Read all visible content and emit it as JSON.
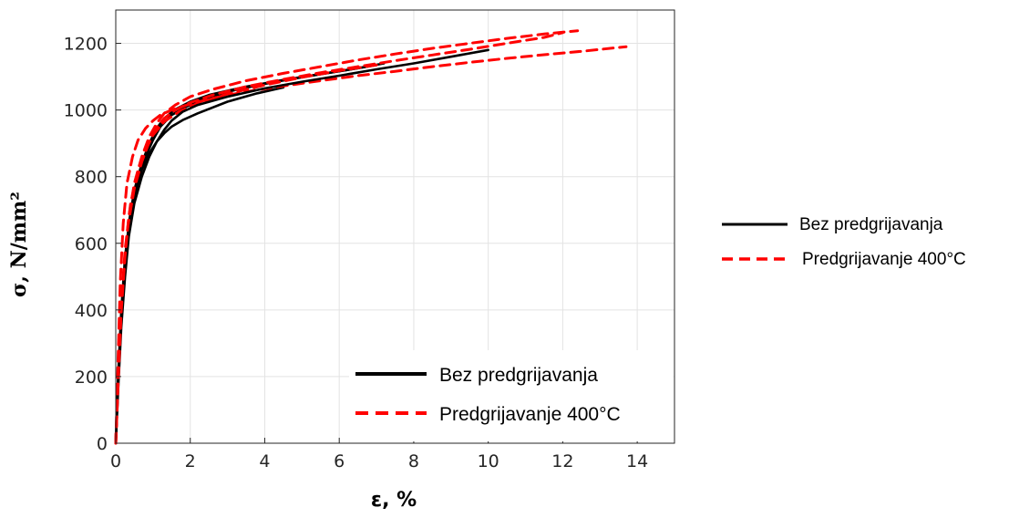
{
  "chart_data": {
    "type": "line",
    "xlabel": "ε, %",
    "ylabel": "σ, N/mm²",
    "xlim": [
      0,
      15
    ],
    "ylim": [
      0,
      1300
    ],
    "x_ticks": [
      0,
      2,
      4,
      6,
      8,
      10,
      12,
      14
    ],
    "y_ticks": [
      0,
      200,
      400,
      600,
      800,
      1000,
      1200
    ],
    "grid": true,
    "legend_position": "bottom-right",
    "series": [
      {
        "name": "Bez predgrijavanja",
        "color": "#000000",
        "style": "solid",
        "group": 0,
        "x": [
          0,
          0.08,
          0.15,
          0.25,
          0.35,
          0.5,
          0.7,
          0.9,
          1.1,
          1.3,
          1.5,
          1.8,
          2.2,
          3,
          4,
          5,
          6,
          7,
          8,
          9,
          10
        ],
        "y": [
          0,
          200,
          350,
          500,
          620,
          720,
          800,
          860,
          905,
          940,
          968,
          995,
          1015,
          1040,
          1065,
          1085,
          1103,
          1122,
          1140,
          1160,
          1180
        ]
      },
      {
        "name": "Bez predgrijavanja",
        "color": "#000000",
        "style": "solid",
        "group": 1,
        "x": [
          0,
          0.07,
          0.15,
          0.25,
          0.35,
          0.5,
          0.7,
          0.9,
          1.1,
          1.3,
          1.5,
          1.8,
          2.2,
          3,
          3.8,
          4.5
        ],
        "y": [
          0,
          200,
          370,
          520,
          640,
          740,
          820,
          870,
          905,
          930,
          950,
          970,
          990,
          1025,
          1050,
          1068
        ]
      },
      {
        "name": "Bez predgrijavanja",
        "color": "#000000",
        "style": "solid",
        "group": 1,
        "x": [
          0,
          0.07,
          0.15,
          0.25,
          0.35,
          0.5,
          0.7,
          0.9,
          1.1,
          1.3,
          1.6,
          2,
          2.5,
          3.5,
          4.5,
          5.5,
          6.5,
          7.2
        ],
        "y": [
          0,
          210,
          380,
          540,
          660,
          760,
          840,
          900,
          945,
          975,
          1002,
          1025,
          1045,
          1070,
          1090,
          1108,
          1125,
          1140
        ]
      },
      {
        "name": "Bez predgrijavanja",
        "color": "#000000",
        "style": "solid",
        "group": 1,
        "x": [
          0,
          0.07,
          0.15,
          0.25,
          0.4,
          0.6,
          0.8,
          1,
          1.2,
          1.5,
          1.9,
          2.4,
          3.2,
          4.2,
          5.2,
          6.2,
          7
        ],
        "y": [
          0,
          220,
          400,
          560,
          690,
          790,
          860,
          910,
          950,
          985,
          1010,
          1035,
          1060,
          1083,
          1102,
          1120,
          1135
        ]
      },
      {
        "name": "Predgrijavanje 400°C",
        "color": "#ff0000",
        "style": "dashed",
        "group": 0,
        "x": [
          0,
          0.08,
          0.15,
          0.25,
          0.35,
          0.5,
          0.7,
          0.9,
          1.1,
          1.3,
          1.6,
          2,
          2.6,
          3.5,
          4.5,
          5.5,
          6.5,
          7.5,
          8.5,
          9.5,
          10.5,
          11.5,
          12.4
        ],
        "y": [
          0,
          220,
          400,
          560,
          680,
          780,
          860,
          920,
          960,
          990,
          1015,
          1040,
          1062,
          1088,
          1110,
          1130,
          1150,
          1168,
          1185,
          1200,
          1215,
          1228,
          1238
        ]
      },
      {
        "name": "Predgrijavanje 400°C",
        "color": "#ff0000",
        "style": "dashed",
        "group": 1,
        "x": [
          0,
          0.06,
          0.12,
          0.2,
          0.3,
          0.45,
          0.6,
          0.8,
          1,
          1.2,
          1.5,
          2,
          2.6,
          3.5,
          4.5,
          5.5,
          6.5,
          7.5,
          8.5,
          9.5,
          10.5,
          11.5,
          12.6,
          13.7
        ],
        "y": [
          0,
          250,
          480,
          660,
          780,
          860,
          910,
          945,
          968,
          985,
          1000,
          1018,
          1035,
          1055,
          1072,
          1088,
          1103,
          1116,
          1130,
          1143,
          1155,
          1166,
          1177,
          1190
        ]
      },
      {
        "name": "Predgrijavanje 400°C",
        "color": "#ff0000",
        "style": "dashed",
        "group": 1,
        "x": [
          0,
          0.07,
          0.15,
          0.25,
          0.35,
          0.5,
          0.7,
          0.9,
          1.1,
          1.3,
          1.6,
          2,
          2.6,
          3.5,
          4.5,
          5.5,
          6.5,
          7.5,
          8.5,
          9.5,
          10.5,
          11.5,
          12
        ],
        "y": [
          0,
          210,
          390,
          545,
          665,
          765,
          845,
          905,
          948,
          975,
          1000,
          1022,
          1045,
          1070,
          1092,
          1112,
          1130,
          1148,
          1165,
          1182,
          1200,
          1218,
          1232
        ]
      },
      {
        "name": "Predgrijavanje 400°C",
        "color": "#ff0000",
        "style": "dashed",
        "group": 1,
        "x": [
          0,
          0.07,
          0.15,
          0.25,
          0.4,
          0.6,
          0.8,
          1,
          1.3,
          1.7,
          2.2,
          3,
          4,
          5,
          6,
          7
        ],
        "y": [
          0,
          230,
          420,
          580,
          720,
          820,
          880,
          925,
          965,
          995,
          1020,
          1048,
          1075,
          1098,
          1118,
          1135
        ]
      }
    ]
  },
  "axes": {
    "xlabel": "ε, %",
    "ylabel": "σ, N/mm²"
  },
  "legend": {
    "items": [
      {
        "label": "Bez predgrijavanja",
        "color": "#000000",
        "style": "solid"
      },
      {
        "label": "Predgrijavanje 400°C",
        "color": "#ff0000",
        "style": "dashed"
      }
    ]
  },
  "external_legend": {
    "items": [
      {
        "label": "Bez predgrijavanja",
        "color": "#000000",
        "style": "solid"
      },
      {
        "label": "Predgrijavanje 400°C",
        "color": "#ff0000",
        "style": "dashed"
      }
    ]
  }
}
